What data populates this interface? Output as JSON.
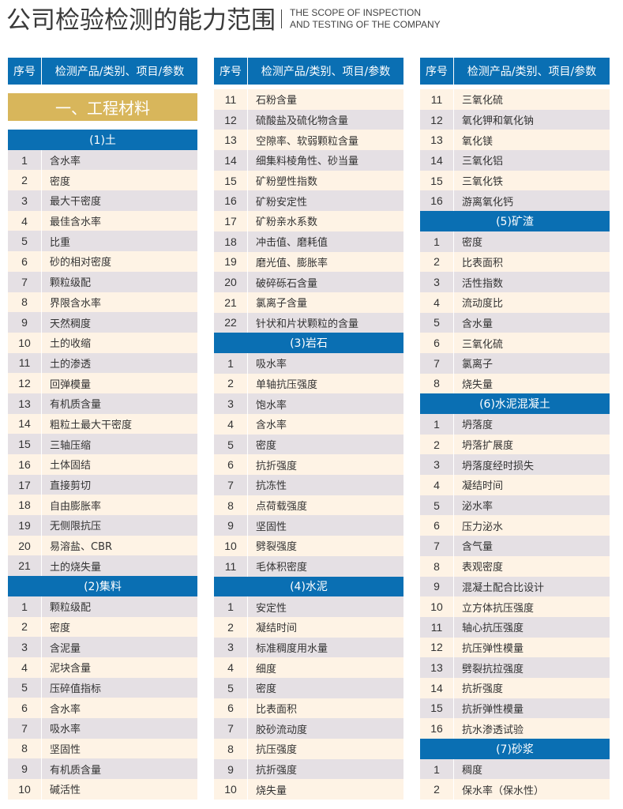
{
  "title": "公司检验检测的能力范围",
  "subtitle": [
    "THE SCOPE OF INSPECTION",
    "AND TESTING OF THE COMPANY"
  ],
  "header": {
    "seq": "序号",
    "name": "检测产品/类别、项目/参数"
  },
  "colors": {
    "blue": "#0a6fb3",
    "gold": "#d8b65b",
    "row_gray": "#e5e0e4",
    "row_cream": "#fef3e5"
  },
  "columns": [
    {
      "category": "一、工程材料",
      "blocks": [
        {
          "section": "(1)土",
          "first": "gray",
          "items": [
            [
              "1",
              "含水率"
            ],
            [
              "2",
              "密度"
            ],
            [
              "3",
              "最大干密度"
            ],
            [
              "4",
              "最佳含水率"
            ],
            [
              "5",
              "比重"
            ],
            [
              "6",
              "砂的相对密度"
            ],
            [
              "7",
              "颗粒级配"
            ],
            [
              "8",
              "界限含水率"
            ],
            [
              "9",
              "天然稠度"
            ],
            [
              "10",
              "土的收缩"
            ],
            [
              "11",
              "土的渗透"
            ],
            [
              "12",
              "回弹模量"
            ],
            [
              "13",
              "有机质含量"
            ],
            [
              "14",
              "粗粒土最大干密度"
            ],
            [
              "15",
              "三轴压缩"
            ],
            [
              "16",
              "土体固结"
            ],
            [
              "17",
              "直接剪切"
            ],
            [
              "18",
              "自由膨胀率"
            ],
            [
              "19",
              "无侧限抗压"
            ],
            [
              "20",
              "易溶盐、CBR"
            ],
            [
              "21",
              "土的烧失量"
            ]
          ]
        },
        {
          "section": "(2)集料",
          "first": "gray",
          "items": [
            [
              "1",
              "颗粒级配"
            ],
            [
              "2",
              "密度"
            ],
            [
              "3",
              "含泥量"
            ],
            [
              "4",
              "泥块含量"
            ],
            [
              "5",
              "压碎值指标"
            ],
            [
              "6",
              "含水率"
            ],
            [
              "7",
              "吸水率"
            ],
            [
              "8",
              "坚固性"
            ],
            [
              "9",
              "有机质含量"
            ],
            [
              "10",
              "碱活性"
            ]
          ]
        }
      ]
    },
    {
      "blocks": [
        {
          "section": "",
          "first": "cream",
          "items": [
            [
              "11",
              "石粉含量"
            ],
            [
              "12",
              "硫酸盐及硫化物含量"
            ],
            [
              "13",
              "空隙率、软弱颗粒含量"
            ],
            [
              "14",
              "细集料棱角性、砂当量"
            ],
            [
              "15",
              "矿粉塑性指数"
            ],
            [
              "16",
              "矿粉安定性"
            ],
            [
              "17",
              "矿粉亲水系数"
            ],
            [
              "18",
              "冲击值、磨耗值"
            ],
            [
              "19",
              "磨光值、膨胀率"
            ],
            [
              "20",
              "破碎砾石含量"
            ],
            [
              "21",
              "氯离子含量"
            ],
            [
              "22",
              "针状和片状颗粒的含量"
            ]
          ]
        },
        {
          "section": "(3)岩石",
          "first": "gray",
          "items": [
            [
              "1",
              "吸水率"
            ],
            [
              "2",
              "单轴抗压强度"
            ],
            [
              "3",
              "饱水率"
            ],
            [
              "4",
              "含水率"
            ],
            [
              "5",
              "密度"
            ],
            [
              "6",
              "抗折强度"
            ],
            [
              "7",
              "抗冻性"
            ],
            [
              "8",
              "点荷载强度"
            ],
            [
              "9",
              "坚固性"
            ],
            [
              "10",
              "劈裂强度"
            ],
            [
              "11",
              "毛体积密度"
            ]
          ]
        },
        {
          "section": "(4)水泥",
          "first": "gray",
          "items": [
            [
              "1",
              "安定性"
            ],
            [
              "2",
              "凝结时间"
            ],
            [
              "3",
              "标准稠度用水量"
            ],
            [
              "4",
              "细度"
            ],
            [
              "5",
              "密度"
            ],
            [
              "6",
              "比表面积"
            ],
            [
              "7",
              "胶砂流动度"
            ],
            [
              "8",
              "抗压强度"
            ],
            [
              "9",
              "抗折强度"
            ],
            [
              "10",
              "烧失量"
            ]
          ]
        }
      ]
    },
    {
      "blocks": [
        {
          "section": "",
          "first": "cream",
          "items": [
            [
              "11",
              "三氧化硫"
            ],
            [
              "12",
              "氧化钾和氧化钠"
            ],
            [
              "13",
              "氧化镁"
            ],
            [
              "14",
              "三氧化铝"
            ],
            [
              "15",
              "三氧化铁"
            ],
            [
              "16",
              "游离氧化钙"
            ]
          ]
        },
        {
          "section": "(5)矿渣",
          "first": "gray",
          "items": [
            [
              "1",
              "密度"
            ],
            [
              "2",
              "比表面积"
            ],
            [
              "3",
              "活性指数"
            ],
            [
              "4",
              "流动度比"
            ],
            [
              "5",
              "含水量"
            ],
            [
              "6",
              "三氧化硫"
            ],
            [
              "7",
              "氯离子"
            ],
            [
              "8",
              "烧失量"
            ]
          ]
        },
        {
          "section": "(6)水泥混凝土",
          "first": "gray",
          "items": [
            [
              "1",
              "坍落度"
            ],
            [
              "2",
              "坍落扩展度"
            ],
            [
              "3",
              "坍落度经时损失"
            ],
            [
              "4",
              "凝结时间"
            ],
            [
              "5",
              "泌水率"
            ],
            [
              "6",
              "压力泌水"
            ],
            [
              "7",
              "含气量"
            ],
            [
              "8",
              "表观密度"
            ],
            [
              "9",
              "混凝土配合比设计"
            ],
            [
              "10",
              "立方体抗压强度"
            ],
            [
              "11",
              "轴心抗压强度"
            ],
            [
              "12",
              "抗压弹性模量"
            ],
            [
              "13",
              "劈裂抗拉强度"
            ],
            [
              "14",
              "抗折强度"
            ],
            [
              "15",
              "抗折弹性模量"
            ],
            [
              "16",
              "抗水渗透试验"
            ]
          ]
        },
        {
          "section": "(7)砂浆",
          "first": "gray",
          "items": [
            [
              "1",
              "稠度"
            ],
            [
              "2",
              "保水率（保水性）"
            ]
          ]
        }
      ]
    }
  ]
}
